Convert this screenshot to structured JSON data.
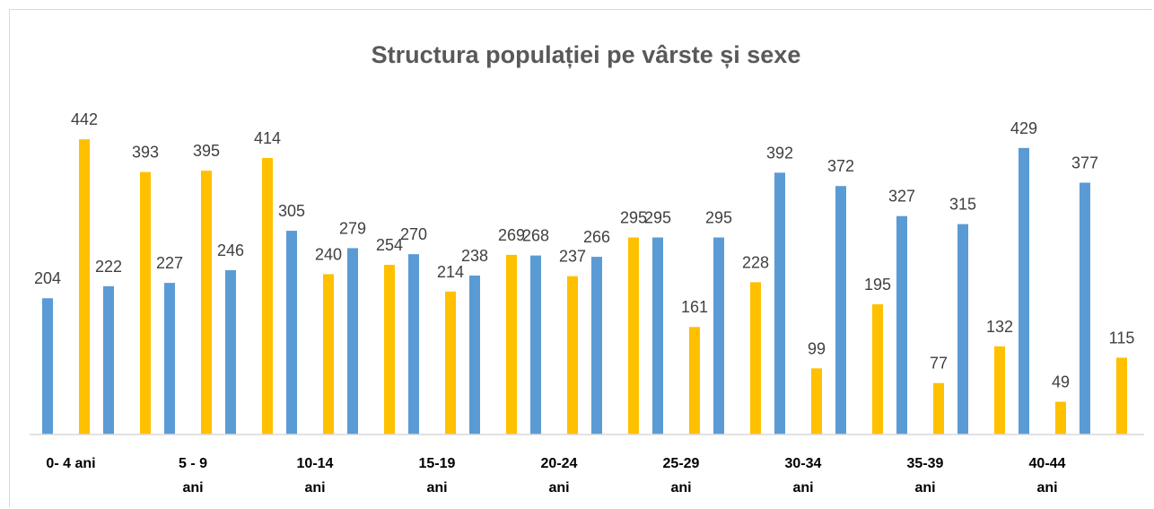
{
  "chart_data": {
    "type": "bar",
    "title": "Structura populației pe vârste și sexe",
    "categories": [
      "0- 4 ani",
      null,
      "5 - 9 ani",
      null,
      "10-14 ani",
      null,
      "15-19 ani",
      null,
      "20-24 ani",
      null,
      "25-29 ani",
      null,
      "30-34 ani",
      null,
      "35-39 ani",
      null,
      "40-44 ani",
      null
    ],
    "series": [
      {
        "color": "#5b9bd5",
        "values": [
          204,
          222,
          227,
          246,
          305,
          279,
          270,
          238,
          268,
          266,
          295,
          295,
          392,
          372,
          327,
          315,
          429,
          377
        ]
      },
      {
        "color": "#ffc000",
        "values": [
          442,
          393,
          395,
          414,
          240,
          254,
          214,
          269,
          237,
          295,
          161,
          228,
          99,
          195,
          77,
          132,
          49,
          115
        ]
      }
    ],
    "ylim": [
      0,
      500
    ]
  }
}
